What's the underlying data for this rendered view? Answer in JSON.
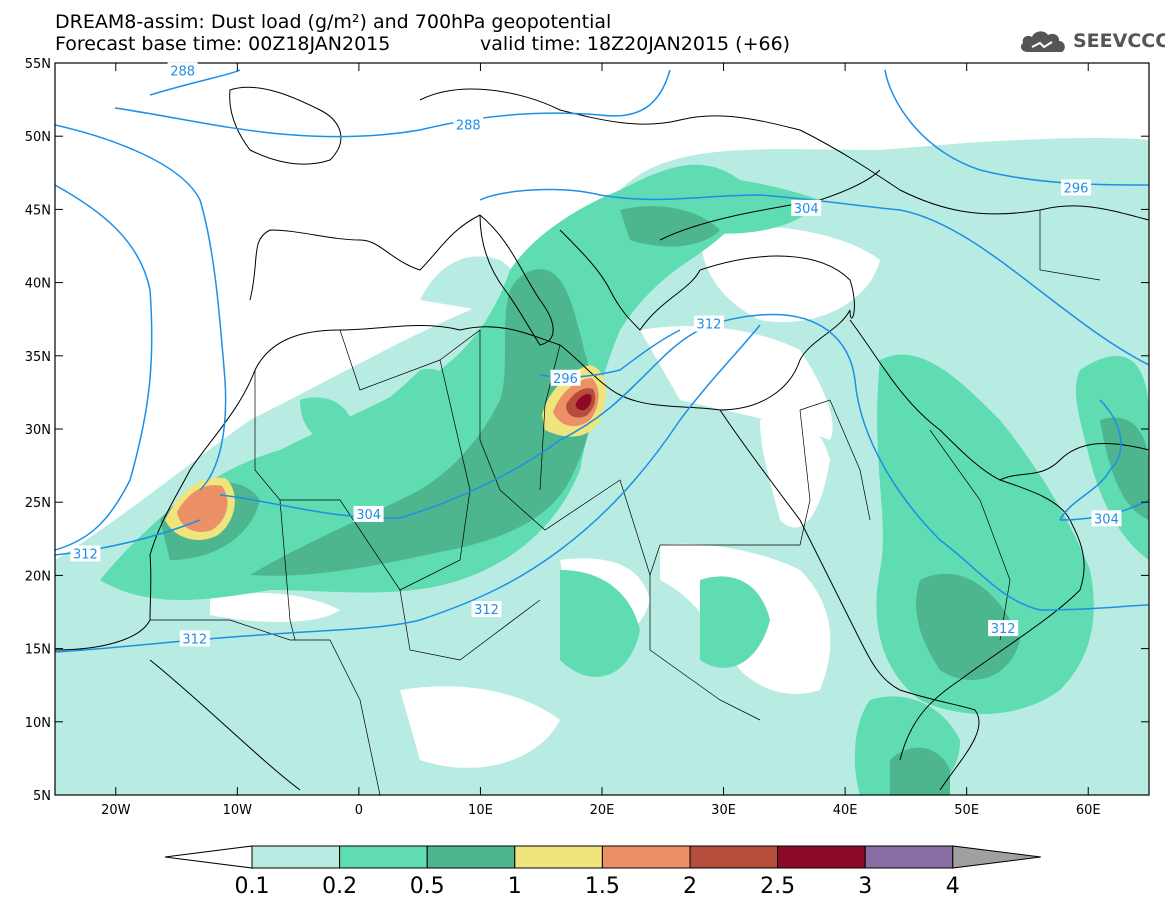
{
  "header": {
    "title_line1": "DREAM8-assim: Dust load (g/m²) and 700hPa geopotential",
    "title_line2a": "Forecast base time: 00Z18JAN2015",
    "title_line2b": "valid time: 18Z20JAN2015 (+66)",
    "logo_text": "SEEVCCC",
    "logo_icon": "cloud-icon"
  },
  "map": {
    "lon_ticks": [
      "20W",
      "10W",
      "0",
      "10E",
      "20E",
      "30E",
      "40E",
      "50E",
      "60E"
    ],
    "lat_ticks": [
      "55N",
      "50N",
      "45N",
      "40N",
      "35N",
      "30N",
      "25N",
      "20N",
      "15N",
      "10N",
      "5N"
    ],
    "lon_range": [
      -25,
      65
    ],
    "lat_range": [
      5,
      55
    ],
    "contour_labels": [
      {
        "text": "288",
        "lon": -14.5,
        "lat": 54.5
      },
      {
        "text": "288",
        "lon": 9,
        "lat": 50.8
      },
      {
        "text": "296",
        "lon": 59,
        "lat": 46.5
      },
      {
        "text": "304",
        "lon": 36.8,
        "lat": 45.1
      },
      {
        "text": "312",
        "lon": 28.8,
        "lat": 37.2
      },
      {
        "text": "296",
        "lon": 17,
        "lat": 33.5
      },
      {
        "text": "304",
        "lon": 0.8,
        "lat": 24.2
      },
      {
        "text": "304",
        "lon": 61.5,
        "lat": 23.9
      },
      {
        "text": "312",
        "lon": -22.5,
        "lat": 21.5
      },
      {
        "text": "312",
        "lon": 10.5,
        "lat": 17.7
      },
      {
        "text": "312",
        "lon": -13.5,
        "lat": 15.7
      },
      {
        "text": "312",
        "lon": 53,
        "lat": 16.4
      }
    ],
    "contour_color": "#1e8fe6",
    "dust_colors": {
      "c01": "#b8ece2",
      "c02": "#5fdcb2",
      "c05": "#4eb68e",
      "c1": "#f0e57c",
      "c15": "#ec9068",
      "c2": "#b64c3c",
      "c25": "#8c0a28",
      "c3": "#8a6ca4",
      "c4": "#a0a0a0"
    }
  },
  "colorbar": {
    "labels": [
      "0.1",
      "0.2",
      "0.5",
      "1",
      "1.5",
      "2",
      "2.5",
      "3",
      "4"
    ],
    "colors": [
      "#b8ece2",
      "#5fdcb2",
      "#4eb68e",
      "#f0e57c",
      "#ec9068",
      "#b64c3c",
      "#8c0a28",
      "#8a6ca4"
    ],
    "low_color": "#ffffff",
    "high_color": "#a0a0a0"
  }
}
